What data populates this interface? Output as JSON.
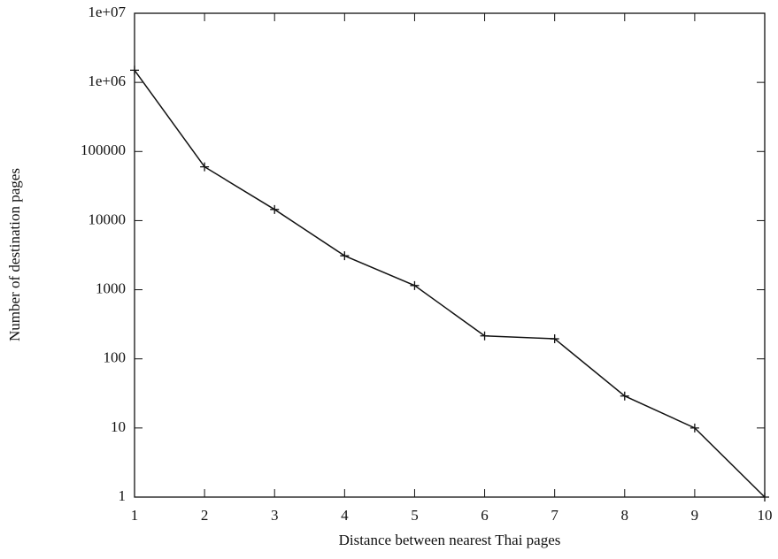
{
  "chart_data": {
    "type": "line",
    "x_label": "Distance between nearest Thai pages",
    "y_label": "Number of destination pages",
    "x": [
      1,
      2,
      3,
      4,
      5,
      6,
      7,
      8,
      9,
      10
    ],
    "series": [
      {
        "color": "#111111",
        "values": [
          1500000,
          60000,
          14500,
          3100,
          1150,
          215,
          195,
          29,
          10,
          1
        ]
      }
    ],
    "xlim": [
      1,
      10
    ],
    "xticks": [
      1,
      2,
      3,
      4,
      5,
      6,
      7,
      8,
      9,
      10
    ],
    "ylim": [
      1,
      10000000
    ],
    "yscale": "log",
    "yticks": [
      1,
      10,
      100,
      1000,
      10000,
      100000,
      {
        "value": 1000000,
        "label": "1e+06"
      },
      {
        "value": 10000000,
        "label": "1e+07"
      }
    ]
  }
}
